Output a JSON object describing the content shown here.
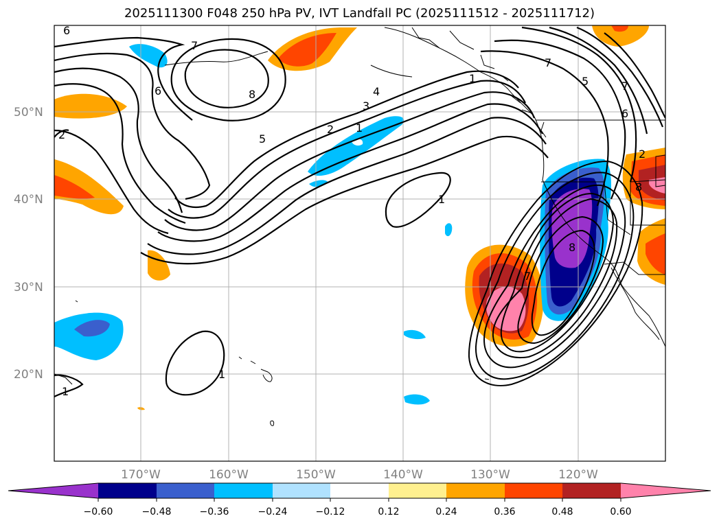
{
  "title": "2025111300 F048 250 hPa PV, IVT Landfall PC (2025111512 - 2025111712)",
  "lat_labels": [
    "50°N",
    "40°N",
    "30°N",
    "20°N"
  ],
  "lon_labels": [
    "170°W",
    "160°W",
    "150°W",
    "140°W",
    "130°W",
    "120°W"
  ],
  "colorbar": {
    "colors": [
      "#9932cc",
      "#00008b",
      "#3a5fcd",
      "#00bfff",
      "#b0e2ff",
      "#ffffff",
      "#fff08f",
      "#ffa500",
      "#ff4500",
      "#b22222",
      "#ff82ab"
    ],
    "tick_labels": [
      "−0.60",
      "−0.48",
      "−0.36",
      "−0.24",
      "−0.12",
      "0.12",
      "0.24",
      "0.36",
      "0.48",
      "0.60"
    ]
  },
  "contour_labels": [
    "6",
    "7",
    "8",
    "6",
    "5",
    "4",
    "3",
    "2",
    "1",
    "2",
    "1",
    "1",
    "1",
    "7",
    "5",
    "6",
    "7",
    "8",
    "8",
    "7",
    "1",
    "2"
  ]
}
